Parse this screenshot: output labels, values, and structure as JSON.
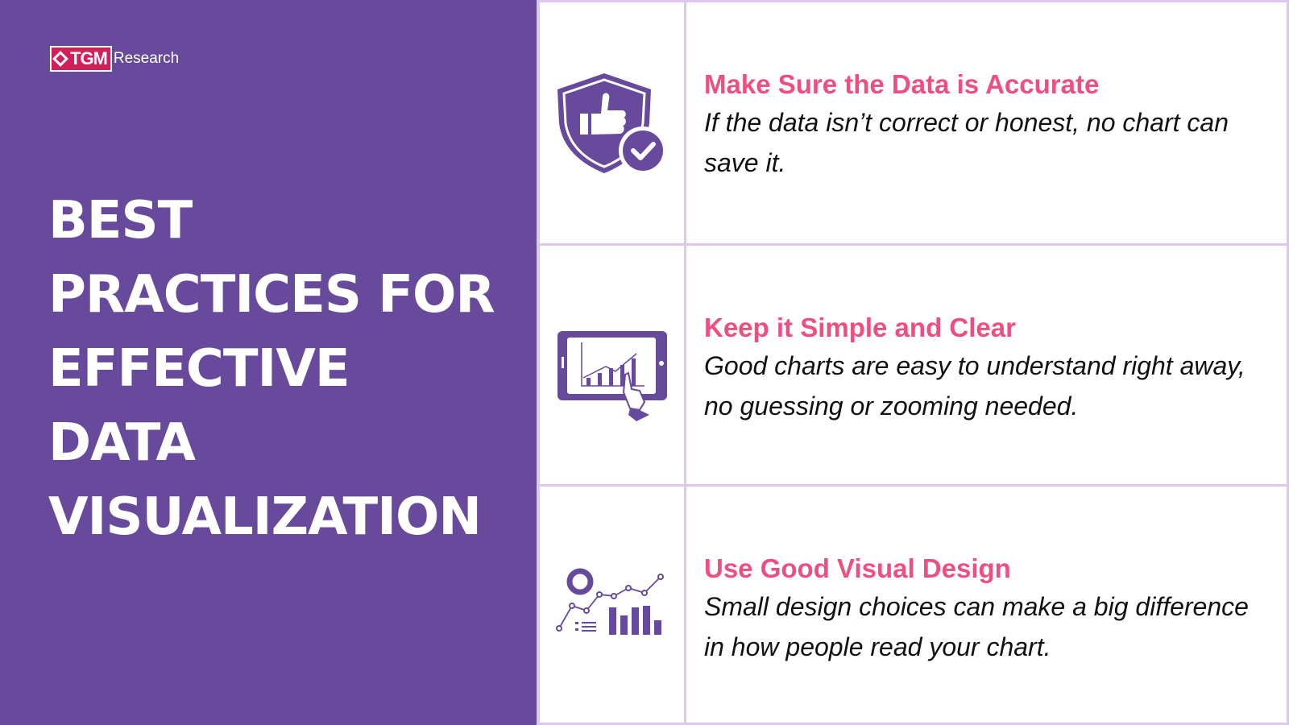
{
  "logo": {
    "brand": "TGM",
    "suffix": "Research"
  },
  "title": [
    "BEST",
    "PRACTICES FOR",
    "EFFECTIVE",
    "DATA",
    "VISUALIZATION"
  ],
  "colors": {
    "purple": "#674a9c",
    "pink": "#ec4f80",
    "logo_red": "#d11f5a",
    "border": "#dcc8ee"
  },
  "items": [
    {
      "icon": "shield-thumbs-up-check-icon",
      "heading": "Make Sure the Data is Accurate",
      "text": "If the data isn’t correct or honest, no chart can save it."
    },
    {
      "icon": "tablet-chart-touch-icon",
      "heading": "Keep it Simple and Clear",
      "text": "Good charts are easy to understand right away, no guessing or zooming needed."
    },
    {
      "icon": "charts-collection-icon",
      "heading": "Use Good Visual Design",
      "text": "Small design choices can make a big difference in how people read your chart."
    }
  ]
}
